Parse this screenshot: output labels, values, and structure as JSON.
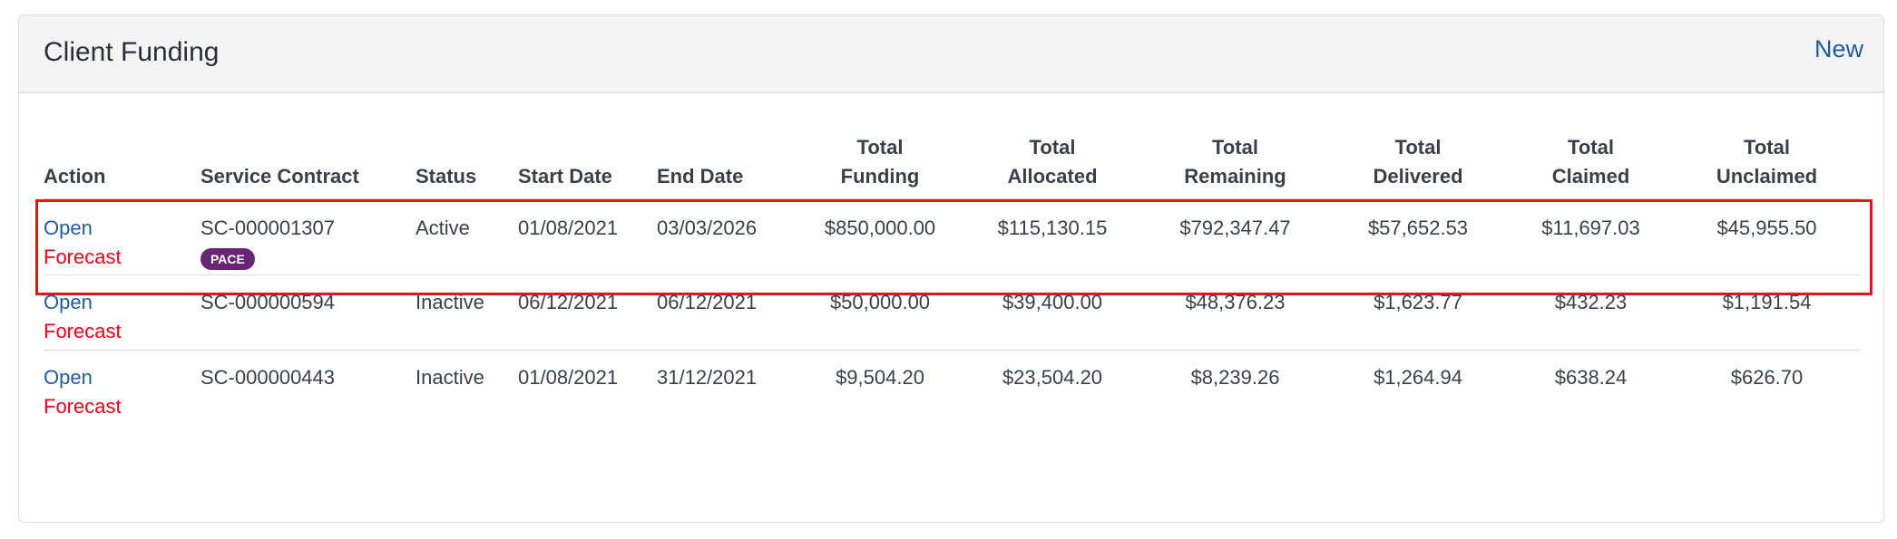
{
  "card": {
    "title": "Client Funding",
    "new_label": "New"
  },
  "table": {
    "headers": [
      [
        "Action"
      ],
      [
        "Service Contract"
      ],
      [
        "Status"
      ],
      [
        "Start Date"
      ],
      [
        "End Date"
      ],
      [
        "Total",
        "Funding"
      ],
      [
        "Total",
        "Allocated"
      ],
      [
        "Total",
        "Remaining"
      ],
      [
        "Total",
        "Delivered"
      ],
      [
        "Total",
        "Claimed"
      ],
      [
        "Total",
        "Unclaimed"
      ]
    ],
    "rows": [
      {
        "open": "Open",
        "forecast": "Forecast",
        "contract": "SC-000001307",
        "badge": "PACE",
        "status": "Active",
        "start": "01/08/2021",
        "end": "03/03/2026",
        "funding": "$850,000.00",
        "allocated": "$115,130.15",
        "remaining": "$792,347.47",
        "delivered": "$57,652.53",
        "claimed": "$11,697.03",
        "unclaimed": "$45,955.50"
      },
      {
        "open": "Open",
        "forecast": "Forecast",
        "contract": "SC-000000594",
        "status": "Inactive",
        "start": "06/12/2021",
        "end": "06/12/2021",
        "funding": "$50,000.00",
        "allocated": "$39,400.00",
        "remaining": "$48,376.23",
        "delivered": "$1,623.77",
        "claimed": "$432.23",
        "unclaimed": "$1,191.54"
      },
      {
        "open": "Open",
        "forecast": "Forecast",
        "contract": "SC-000000443",
        "status": "Inactive",
        "start": "01/08/2021",
        "end": "31/12/2021",
        "funding": "$9,504.20",
        "allocated": "$23,504.20",
        "remaining": "$8,239.26",
        "delivered": "$1,264.94",
        "claimed": "$638.24",
        "unclaimed": "$626.70"
      }
    ]
  },
  "colors": {
    "link": "#1f5c99",
    "forecast": "#e8001c",
    "badge": "#682573",
    "highlight": "#e3151b"
  }
}
